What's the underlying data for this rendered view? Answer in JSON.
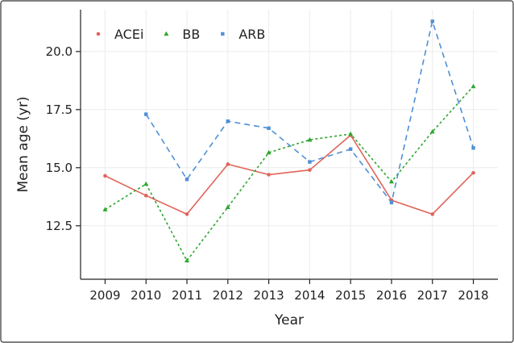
{
  "chart_data": {
    "type": "line",
    "title": "",
    "xlabel": "Year",
    "ylabel": "Mean age (yr)",
    "x": [
      2009,
      2010,
      2011,
      2012,
      2013,
      2014,
      2015,
      2016,
      2017,
      2018
    ],
    "xlim": [
      2008.4,
      2018.6
    ],
    "ylim": [
      10.2,
      21.8
    ],
    "yticks": [
      12.5,
      15.0,
      17.5,
      20.0
    ],
    "ytick_labels": [
      "12.5",
      "15.0",
      "17.5",
      "20.0"
    ],
    "grid": true,
    "legend": "top-left",
    "series": [
      {
        "name": "ACEi",
        "color": "#e0645a",
        "dash": "solid",
        "marker": "circle",
        "values": [
          14.65,
          13.8,
          13.0,
          15.15,
          14.7,
          14.9,
          16.4,
          13.6,
          13.0,
          14.78
        ]
      },
      {
        "name": "BB",
        "color": "#2ea62e",
        "dash": "dotted",
        "marker": "triangle",
        "values": [
          13.2,
          14.3,
          11.0,
          13.3,
          15.65,
          16.2,
          16.45,
          14.4,
          16.55,
          18.5
        ]
      },
      {
        "name": "ARB",
        "color": "#4f8fd6",
        "dash": "dashed",
        "marker": "square",
        "values": [
          null,
          17.3,
          14.5,
          17.0,
          16.7,
          15.25,
          15.8,
          13.5,
          21.3,
          15.85
        ]
      }
    ]
  }
}
